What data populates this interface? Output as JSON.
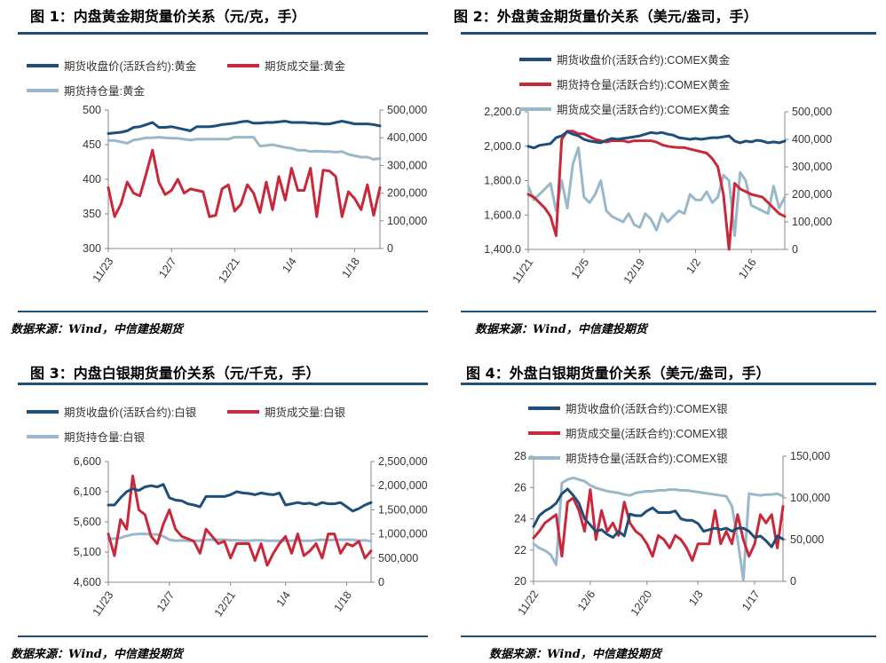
{
  "figures": [
    {
      "title": "图 1：内盘黄金期货量价关系（元/克，手）",
      "source": "数据来源：Wind，中信建投期货"
    },
    {
      "title": "图 2：外盘黄金期货量价关系（美元/盎司，手）",
      "source": "数据来源：Wind，中信建投期货"
    },
    {
      "title": "图 3：内盘白银期货量价关系（元/千克，手）",
      "source": "数据来源：Wind，中信建投期货"
    },
    {
      "title": "图 4：外盘白银期货量价关系（美元/盎司，手）",
      "source": "数据来源：Wind，中信建投期货"
    }
  ],
  "colors": {
    "navy": "#1f4e79",
    "red": "#c8283a",
    "lightblue": "#9bb7ca",
    "rule": "#1f4e79"
  },
  "chart_data": [
    {
      "type": "line",
      "x": [
        "11/23",
        "11/24",
        "11/25",
        "11/26",
        "11/29",
        "11/30",
        "12/1",
        "12/2",
        "12/3",
        "12/6",
        "12/7",
        "12/8",
        "12/9",
        "12/10",
        "12/13",
        "12/14",
        "12/15",
        "12/16",
        "12/17",
        "12/20",
        "12/21",
        "12/22",
        "12/23",
        "12/24",
        "12/27",
        "12/28",
        "12/29",
        "12/30",
        "12/31",
        "1/4",
        "1/5",
        "1/6",
        "1/7",
        "1/10",
        "1/11",
        "1/12",
        "1/13",
        "1/14",
        "1/17",
        "1/18",
        "1/19",
        "1/20",
        "1/21",
        "1/24"
      ],
      "xticks": [
        "11/23",
        "12/7",
        "12/21",
        "1/4",
        "1/18"
      ],
      "left_axis": {
        "ylim": [
          300,
          500
        ],
        "ticks": [
          "300",
          "350",
          "400",
          "450",
          "500"
        ]
      },
      "right_axis": {
        "ylim": [
          0,
          500000
        ],
        "ticks": [
          "0",
          "100,000",
          "200,000",
          "300,000",
          "400,000",
          "500,000"
        ]
      },
      "legend": {
        "placement": "top",
        "labels": [
          "期货收盘价(活跃合约):黄金",
          "期货成交量:黄金",
          "期货持仓量:黄金"
        ]
      },
      "series": [
        {
          "name": "期货收盘价(活跃合约):黄金",
          "axis": "left",
          "color": "navy",
          "values": [
            466,
            467,
            468,
            470,
            475,
            476,
            479,
            482,
            475,
            475,
            476,
            474,
            472,
            470,
            476,
            476,
            476,
            477,
            479,
            480,
            481,
            483,
            484,
            481,
            481,
            482,
            482,
            483,
            484,
            482,
            482,
            482,
            481,
            481,
            480,
            480,
            482,
            484,
            482,
            480,
            480,
            480,
            479,
            477
          ]
        },
        {
          "name": "期货成交量:黄金",
          "axis": "right",
          "color": "red",
          "values": [
            220000,
            115000,
            160000,
            240000,
            200000,
            190000,
            270000,
            355000,
            240000,
            195000,
            210000,
            250000,
            200000,
            215000,
            210000,
            205000,
            115000,
            120000,
            215000,
            230000,
            135000,
            160000,
            230000,
            200000,
            130000,
            240000,
            140000,
            260000,
            175000,
            290000,
            210000,
            210000,
            290000,
            115000,
            283000,
            280000,
            260000,
            115000,
            205000,
            180000,
            140000,
            230000,
            120000,
            220000
          ]
        },
        {
          "name": "期货持仓量:黄金",
          "axis": "right",
          "color": "lightblue",
          "values": [
            390000,
            390000,
            385000,
            380000,
            392000,
            395000,
            400000,
            400000,
            402000,
            400000,
            398000,
            398000,
            395000,
            392000,
            395000,
            395000,
            395000,
            395000,
            395000,
            395000,
            402000,
            402000,
            402000,
            402000,
            370000,
            372000,
            375000,
            370000,
            365000,
            362000,
            355000,
            355000,
            350000,
            352000,
            350000,
            350000,
            348000,
            350000,
            340000,
            335000,
            330000,
            330000,
            322000,
            325000
          ]
        }
      ]
    },
    {
      "type": "line",
      "x": [
        "11/21",
        "11/22",
        "11/23",
        "11/24",
        "11/25",
        "11/28",
        "11/29",
        "11/30",
        "12/1",
        "12/2",
        "12/5",
        "12/6",
        "12/7",
        "12/8",
        "12/9",
        "12/12",
        "12/13",
        "12/14",
        "12/15",
        "12/16",
        "12/19",
        "12/20",
        "12/21",
        "12/22",
        "12/23",
        "12/26",
        "12/27",
        "12/28",
        "12/29",
        "12/30",
        "1/2",
        "1/3",
        "1/4",
        "1/5",
        "1/6",
        "1/9",
        "1/10",
        "1/11",
        "1/12",
        "1/13",
        "1/16",
        "1/17",
        "1/18",
        "1/19",
        "1/20",
        "1/23",
        "1/24"
      ],
      "xticks": [
        "11/21",
        "12/5",
        "12/19",
        "1/2",
        "1/16"
      ],
      "left_axis": {
        "ylim": [
          1400,
          2200
        ],
        "ticks": [
          "1,400.0",
          "1,600.0",
          "1,800.0",
          "2,000.0",
          "2,200.0"
        ]
      },
      "right_axis": {
        "ylim": [
          0,
          500000
        ],
        "ticks": [
          "0",
          "100,000",
          "200,000",
          "300,000",
          "400,000",
          "500,000"
        ]
      },
      "legend": {
        "placement": "top",
        "labels": [
          "期货收盘价(活跃合约):COMEX黄金",
          "期货持仓量(活跃合约):COMEX黄金",
          "期货成交量(活跃合约):COMEX黄金"
        ]
      },
      "series": [
        {
          "name": "期货收盘价(活跃合约):COMEX黄金",
          "axis": "left",
          "color": "navy",
          "values": [
            2000,
            1990,
            2005,
            2010,
            2015,
            2050,
            2060,
            2085,
            2070,
            2060,
            2040,
            2030,
            2025,
            2020,
            2035,
            2045,
            2040,
            2045,
            2050,
            2055,
            2060,
            2070,
            2080,
            2075,
            2080,
            2070,
            2065,
            2050,
            2045,
            2040,
            2045,
            2040,
            2045,
            2050,
            2050,
            2055,
            2060,
            2030,
            2020,
            2030,
            2025,
            2035,
            2030,
            2020,
            2025,
            2020,
            2030
          ]
        },
        {
          "name": "期货持仓量(活跃合约):COMEX黄金",
          "axis": "right",
          "color": "red",
          "values": [
            200000,
            190000,
            170000,
            150000,
            120000,
            50000,
            400000,
            430000,
            430000,
            420000,
            420000,
            410000,
            400000,
            395000,
            390000,
            395000,
            395000,
            395000,
            390000,
            395000,
            395000,
            395000,
            395000,
            390000,
            380000,
            375000,
            372000,
            370000,
            370000,
            365000,
            360000,
            355000,
            350000,
            330000,
            300000,
            200000,
            0,
            240000,
            220000,
            210000,
            200000,
            195000,
            190000,
            170000,
            150000,
            130000,
            120000
          ]
        },
        {
          "name": "期货成交量(活跃合约):COMEX黄金",
          "axis": "right",
          "color": "lightblue",
          "values": [
            230000,
            180000,
            200000,
            220000,
            240000,
            140000,
            250000,
            150000,
            310000,
            370000,
            190000,
            170000,
            200000,
            250000,
            140000,
            120000,
            110000,
            100000,
            130000,
            90000,
            80000,
            130000,
            110000,
            70000,
            130000,
            100000,
            120000,
            140000,
            130000,
            200000,
            180000,
            180000,
            210000,
            170000,
            190000,
            270000,
            250000,
            50000,
            280000,
            250000,
            160000,
            150000,
            140000,
            130000,
            230000,
            150000,
            190000
          ]
        }
      ]
    },
    {
      "type": "line",
      "x": [
        "11/23",
        "11/24",
        "11/25",
        "11/26",
        "11/29",
        "11/30",
        "12/1",
        "12/2",
        "12/3",
        "12/6",
        "12/7",
        "12/8",
        "12/9",
        "12/10",
        "12/13",
        "12/14",
        "12/15",
        "12/16",
        "12/17",
        "12/20",
        "12/21",
        "12/22",
        "12/23",
        "12/24",
        "12/27",
        "12/28",
        "12/29",
        "12/30",
        "12/31",
        "1/4",
        "1/5",
        "1/6",
        "1/7",
        "1/10",
        "1/11",
        "1/12",
        "1/13",
        "1/14",
        "1/17",
        "1/18",
        "1/19",
        "1/20",
        "1/21",
        "1/24"
      ],
      "xticks": [
        "11/23",
        "12/7",
        "12/21",
        "1/4",
        "1/18"
      ],
      "left_axis": {
        "ylim": [
          4600,
          6600
        ],
        "ticks": [
          "4,600",
          "5,100",
          "5,600",
          "6,100",
          "6,600"
        ]
      },
      "right_axis": {
        "ylim": [
          0,
          2500000
        ],
        "ticks": [
          "0",
          "500,000",
          "1,000,000",
          "1,500,000",
          "2,000,000",
          "2,500,000"
        ]
      },
      "legend": {
        "placement": "top",
        "labels": [
          "期货收盘价(活跃合约):白银",
          "期货成交量:白银",
          "期货持仓量:白银"
        ]
      },
      "series": [
        {
          "name": "期货收盘价(活跃合约):白银",
          "axis": "left",
          "color": "navy",
          "values": [
            5880,
            5880,
            6000,
            6100,
            6150,
            6120,
            6180,
            6200,
            6180,
            6220,
            6000,
            5960,
            5950,
            5900,
            5880,
            5850,
            6020,
            6020,
            6020,
            6020,
            6050,
            6100,
            6080,
            6070,
            6050,
            6080,
            6060,
            6050,
            6080,
            5880,
            5900,
            5920,
            5900,
            5910,
            5880,
            5920,
            5900,
            5900,
            5920,
            5850,
            5780,
            5820,
            5880,
            5920
          ]
        },
        {
          "name": "期货成交量:白银",
          "axis": "right",
          "color": "red",
          "values": [
            1000000,
            550000,
            1300000,
            1100000,
            2200000,
            1500000,
            1400000,
            950000,
            800000,
            1200000,
            1500000,
            1100000,
            950000,
            900000,
            850000,
            600000,
            1100000,
            950000,
            800000,
            850000,
            500000,
            800000,
            800000,
            800000,
            450000,
            800000,
            350000,
            600000,
            800000,
            950000,
            600000,
            1000000,
            550000,
            650000,
            800000,
            500000,
            1000000,
            1000000,
            600000,
            800000,
            750000,
            850000,
            500000,
            650000
          ]
        },
        {
          "name": "期货持仓量:白银",
          "axis": "right",
          "color": "lightblue",
          "values": [
            900000,
            900000,
            920000,
            960000,
            990000,
            1000000,
            1000000,
            990000,
            990000,
            950000,
            880000,
            860000,
            870000,
            860000,
            860000,
            860000,
            880000,
            880000,
            880000,
            880000,
            870000,
            870000,
            860000,
            860000,
            870000,
            870000,
            860000,
            860000,
            860000,
            860000,
            860000,
            870000,
            860000,
            860000,
            870000,
            880000,
            870000,
            880000,
            880000,
            880000,
            880000,
            860000,
            870000,
            850000
          ]
        }
      ]
    },
    {
      "type": "line",
      "x": [
        "11/22",
        "11/23",
        "11/24",
        "11/25",
        "11/28",
        "11/29",
        "11/30",
        "12/1",
        "12/2",
        "12/5",
        "12/6",
        "12/7",
        "12/8",
        "12/9",
        "12/12",
        "12/13",
        "12/14",
        "12/15",
        "12/16",
        "12/19",
        "12/20",
        "12/21",
        "12/22",
        "12/23",
        "12/26",
        "12/27",
        "12/28",
        "12/29",
        "12/30",
        "1/3",
        "1/4",
        "1/5",
        "1/6",
        "1/9",
        "1/10",
        "1/11",
        "1/12",
        "1/13",
        "1/16",
        "1/17",
        "1/18",
        "1/19",
        "1/20",
        "1/23",
        "1/24"
      ],
      "xticks": [
        "11/22",
        "12/6",
        "12/20",
        "1/3",
        "1/17"
      ],
      "left_axis": {
        "ylim": [
          20,
          28
        ],
        "ticks": [
          "20",
          "22",
          "24",
          "26",
          "28"
        ]
      },
      "right_axis": {
        "ylim": [
          0,
          150000
        ],
        "ticks": [
          "0",
          "50,000",
          "100,000",
          "150,000"
        ]
      },
      "legend": {
        "placement": "top",
        "labels": [
          "期货收盘价(活跃合约):COMEX银",
          "期货成交量(活跃合约):COMEX银",
          "期货持仓量(活跃合约):COMEX银"
        ]
      },
      "series": [
        {
          "name": "期货收盘价(活跃合约):COMEX银",
          "axis": "left",
          "color": "navy",
          "values": [
            23.5,
            24.2,
            24.5,
            24.7,
            25.0,
            25.6,
            25.9,
            25.5,
            25.0,
            24.0,
            23.6,
            23.2,
            23.3,
            23.0,
            22.8,
            23.2,
            22.9,
            24.3,
            24.2,
            24.2,
            24.5,
            24.7,
            24.4,
            24.4,
            24.4,
            24.5,
            24.0,
            23.9,
            23.9,
            23.7,
            23.2,
            23.3,
            23.4,
            23.3,
            23.4,
            23.2,
            23.4,
            23.4,
            23.2,
            22.8,
            22.9,
            22.6,
            22.2,
            22.9,
            22.7
          ]
        },
        {
          "name": "期货成交量(活跃合约):COMEX银",
          "axis": "right",
          "color": "red",
          "values": [
            52000,
            60000,
            70000,
            75000,
            80000,
            30000,
            95000,
            100000,
            85000,
            60000,
            110000,
            50000,
            85000,
            60000,
            70000,
            55000,
            95000,
            70000,
            60000,
            55000,
            45000,
            30000,
            55000,
            50000,
            40000,
            55000,
            50000,
            40000,
            25000,
            45000,
            45000,
            45000,
            85000,
            45000,
            60000,
            45000,
            80000,
            50000,
            30000,
            45000,
            80000,
            70000,
            80000,
            40000,
            90000
          ]
        },
        {
          "name": "期货持仓量(活跃合约):COMEX银",
          "axis": "right",
          "color": "lightblue",
          "values": [
            45000,
            40000,
            37000,
            32000,
            20000,
            118000,
            122000,
            124000,
            122000,
            120000,
            115000,
            112000,
            110000,
            108000,
            107000,
            106000,
            104000,
            103000,
            106000,
            107000,
            108000,
            108000,
            109000,
            109000,
            110000,
            110000,
            109000,
            109000,
            108000,
            107000,
            106000,
            105000,
            104000,
            103000,
            102000,
            90000,
            50000,
            2000,
            105000,
            104000,
            103000,
            104000,
            104000,
            105000,
            102000
          ]
        }
      ]
    }
  ]
}
